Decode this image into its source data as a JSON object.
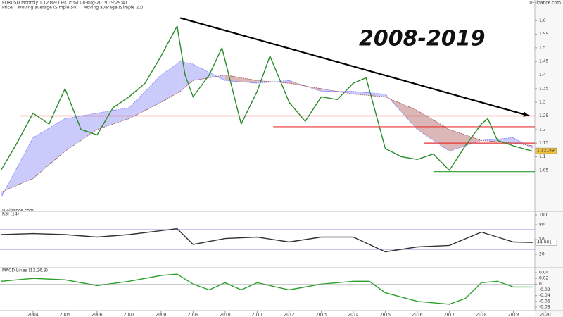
{
  "header": {
    "title": "EURUSD  Monthly  1.12169 (+0.05%)  08-Aug-2019 19:29:41",
    "source": "IT-Finance.com",
    "watermark": "IT-Finance.com"
  },
  "chart_data": [
    {
      "type": "line",
      "annotation": "2008-2019",
      "legend": [
        "Price",
        "Moving average (Simple 50)",
        "Moving average (Simple 20)"
      ],
      "xlim": [
        2002.97,
        2019.67
      ],
      "ylim": [
        0.92,
        1.655
      ],
      "yticks": [
        1.6,
        1.55,
        1.5,
        1.45,
        1.4,
        1.35,
        1.3,
        1.25,
        1.2,
        1.15,
        1.1,
        1.05
      ],
      "last_label": "1.12169",
      "last_value": 1.12169,
      "series": [
        {
          "name": "Price",
          "color": "#2a8a2a",
          "x": [
            2003,
            2003.5,
            2004,
            2004.5,
            2005,
            2005.5,
            2006,
            2006.5,
            2007,
            2007.5,
            2008,
            2008.5,
            2008.75,
            2009,
            2009.5,
            2009.9,
            2010.5,
            2011,
            2011.4,
            2012,
            2012.5,
            2013,
            2013.5,
            2014,
            2014.4,
            2015,
            2015.5,
            2016,
            2016.5,
            2017,
            2017.5,
            2018,
            2018.2,
            2018.5,
            2019,
            2019.6
          ],
          "values": [
            1.05,
            1.15,
            1.26,
            1.22,
            1.35,
            1.2,
            1.18,
            1.28,
            1.32,
            1.37,
            1.47,
            1.58,
            1.4,
            1.32,
            1.4,
            1.5,
            1.22,
            1.34,
            1.47,
            1.3,
            1.23,
            1.32,
            1.31,
            1.37,
            1.39,
            1.13,
            1.1,
            1.09,
            1.11,
            1.05,
            1.14,
            1.22,
            1.24,
            1.16,
            1.14,
            1.12
          ]
        },
        {
          "name": "Moving average (Simple 20)",
          "color": "#8080ff",
          "x": [
            2003,
            2004,
            2005,
            2006,
            2007,
            2008,
            2008.6,
            2009,
            2010,
            2011,
            2012,
            2013,
            2014,
            2015,
            2016,
            2017,
            2018,
            2019,
            2019.6
          ],
          "values": [
            0.95,
            1.17,
            1.24,
            1.26,
            1.28,
            1.4,
            1.45,
            1.44,
            1.38,
            1.37,
            1.38,
            1.34,
            1.34,
            1.33,
            1.2,
            1.12,
            1.16,
            1.17,
            1.13
          ]
        },
        {
          "name": "Moving average (Simple 50)",
          "color": "#a05050",
          "x": [
            2003,
            2004,
            2005,
            2006,
            2007,
            2008,
            2008.6,
            2009,
            2010,
            2011,
            2012,
            2013,
            2014,
            2015,
            2016,
            2017,
            2018,
            2019,
            2019.6
          ],
          "values": [
            0.97,
            1.02,
            1.12,
            1.2,
            1.24,
            1.3,
            1.34,
            1.38,
            1.4,
            1.38,
            1.37,
            1.35,
            1.33,
            1.32,
            1.27,
            1.2,
            1.16,
            1.15,
            1.14
          ]
        }
      ],
      "levels": [
        {
          "value": 1.25,
          "from": 2003.6,
          "color": "#e83030"
        },
        {
          "value": 1.21,
          "from": 2011.5,
          "color": "#e83030"
        },
        {
          "value": 1.15,
          "from": 2016.2,
          "color": "#e83030"
        },
        {
          "value": 1.045,
          "from": 2016.5,
          "color": "#2a9a2a"
        }
      ],
      "trend": {
        "from": [
          2008.6,
          1.61
        ],
        "to": [
          2019.5,
          1.25
        ],
        "color": "#000000"
      }
    },
    {
      "type": "line",
      "label": "RSI (14)",
      "xlim": [
        2002.97,
        2019.67
      ],
      "ylim": [
        0,
        100
      ],
      "yticks": [
        100,
        80,
        50,
        20
      ],
      "bands": [
        70,
        30
      ],
      "last_label": "44.001",
      "last_value": 44,
      "series": [
        {
          "name": "RSI (14)",
          "color": "#333333",
          "x": [
            2003,
            2004,
            2005,
            2006,
            2007,
            2008,
            2008.5,
            2009,
            2010,
            2011,
            2012,
            2013,
            2014,
            2015,
            2016,
            2017,
            2018,
            2018.5,
            2019,
            2019.6
          ],
          "values": [
            60,
            62,
            60,
            55,
            60,
            68,
            72,
            40,
            52,
            55,
            45,
            55,
            55,
            25,
            35,
            38,
            65,
            55,
            45,
            44
          ]
        }
      ]
    },
    {
      "type": "line",
      "label": "MACD Lines (12,26,9)",
      "xlim": [
        2002.97,
        2019.67
      ],
      "ylim": [
        -0.09,
        0.045
      ],
      "yticks": [
        0.04,
        0.02,
        0,
        -0.02,
        -0.04,
        -0.06,
        -0.08
      ],
      "xticks": [
        2004,
        2005,
        2006,
        2007,
        2008,
        2009,
        2010,
        2011,
        2012,
        2013,
        2014,
        2015,
        2016,
        2017,
        2018,
        2019,
        2020
      ],
      "series": [
        {
          "name": "MACD",
          "color": "#2aa02a",
          "x": [
            2003,
            2004,
            2005,
            2006,
            2007,
            2008,
            2008.5,
            2009,
            2009.5,
            2010,
            2010.5,
            2011,
            2012,
            2013,
            2014,
            2014.5,
            2015,
            2016,
            2017,
            2017.5,
            2018,
            2018.5,
            2019,
            2019.6
          ],
          "values": [
            0.01,
            0.02,
            0.015,
            -0.005,
            0.01,
            0.03,
            0.035,
            0,
            -0.02,
            0.005,
            -0.02,
            0.005,
            -0.02,
            0,
            0.01,
            0.01,
            -0.03,
            -0.06,
            -0.07,
            -0.05,
            0.005,
            0.01,
            -0.01,
            -0.01
          ]
        }
      ]
    }
  ]
}
